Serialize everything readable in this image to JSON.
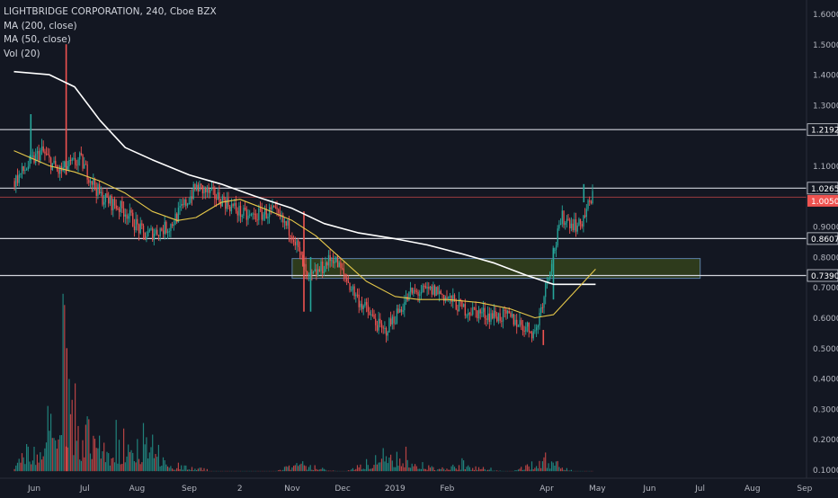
{
  "legend": {
    "title": "LIGHTBRIDGE CORPORATION, 240, Cboe BZX",
    "ma200": "MA (200, close)",
    "ma50": "MA (50, close)",
    "vol": "Vol (20)"
  },
  "colors": {
    "background": "#131722",
    "up": "#26a69a",
    "down": "#ef5350",
    "ma200": "#ffffff",
    "ma50": "#e6c84a",
    "hline": "#d1d4dc",
    "zone_fill": "#2e3b1c",
    "zone_border": "#5b7fa8",
    "last_price_bg": "#ef5350",
    "axis_text": "#b2b5be"
  },
  "chart_data": {
    "type": "candlestick",
    "title": "LIGHTBRIDGE CORPORATION, 240, Cboe BZX",
    "x_tick_labels": [
      "Jun",
      "Jul",
      "Aug",
      "Sep",
      "2",
      "Nov",
      "Dec",
      "2019",
      "Feb",
      "Apr",
      "May",
      "Jun",
      "Jul",
      "Aug",
      "Sep"
    ],
    "y_tick_labels": [
      "1.6000",
      "1.5000",
      "1.4000",
      "1.3000",
      "1.1000",
      "0.9000",
      "0.8000",
      "0.7000",
      "0.6000",
      "0.5000",
      "0.4000",
      "0.3000",
      "0.2000",
      "0.1000"
    ],
    "y_ticks": [
      1.6,
      1.5,
      1.4,
      1.3,
      1.1,
      0.9,
      0.8,
      0.7,
      0.6,
      0.5,
      0.4,
      0.3,
      0.2,
      0.1
    ],
    "ylim": [
      0.09,
      1.63
    ],
    "horizontal_levels": [
      {
        "value": 1.2192,
        "label": "1.2192"
      },
      {
        "value": 1.0265,
        "label": "1.0265"
      },
      {
        "value": 0.8607,
        "label": "0.8607"
      },
      {
        "value": 0.739,
        "label": "0.7390"
      }
    ],
    "last_price": {
      "value": 1.005,
      "label": "1.0050"
    },
    "zone": {
      "low": 0.73,
      "high": 0.795,
      "start": "2018-11",
      "end": "2019-07"
    },
    "price_path": [
      [
        "2018-05-20",
        1.05
      ],
      [
        "2018-06-05",
        1.15
      ],
      [
        "2018-06-15",
        1.08
      ],
      [
        "2018-06-28",
        1.12
      ],
      [
        "2018-07-10",
        1.0
      ],
      [
        "2018-07-25",
        0.95
      ],
      [
        "2018-08-05",
        0.87
      ],
      [
        "2018-08-20",
        0.9
      ],
      [
        "2018-09-05",
        1.03
      ],
      [
        "2018-09-20",
        0.99
      ],
      [
        "2018-10-05",
        0.93
      ],
      [
        "2018-10-20",
        0.95
      ],
      [
        "2018-11-01",
        0.88
      ],
      [
        "2018-11-10",
        0.72
      ],
      [
        "2018-11-25",
        0.8
      ],
      [
        "2018-12-10",
        0.66
      ],
      [
        "2018-12-25",
        0.55
      ],
      [
        "2019-01-10",
        0.68
      ],
      [
        "2019-01-25",
        0.69
      ],
      [
        "2019-02-10",
        0.63
      ],
      [
        "2019-02-25",
        0.61
      ],
      [
        "2019-03-10",
        0.6
      ],
      [
        "2019-03-25",
        0.55
      ],
      [
        "2019-04-03",
        0.78
      ],
      [
        "2019-04-10",
        0.93
      ],
      [
        "2019-04-20",
        0.9
      ],
      [
        "2019-04-28",
        1.0
      ]
    ],
    "ma200_path": [
      [
        "2018-05-20",
        1.41
      ],
      [
        "2018-06-10",
        1.4
      ],
      [
        "2018-06-25",
        1.36
      ],
      [
        "2018-07-10",
        1.25
      ],
      [
        "2018-07-25",
        1.16
      ],
      [
        "2018-08-10",
        1.12
      ],
      [
        "2018-09-01",
        1.07
      ],
      [
        "2018-09-20",
        1.04
      ],
      [
        "2018-10-10",
        1.0
      ],
      [
        "2018-11-01",
        0.96
      ],
      [
        "2018-11-20",
        0.91
      ],
      [
        "2018-12-10",
        0.88
      ],
      [
        "2019-01-01",
        0.86
      ],
      [
        "2019-01-20",
        0.84
      ],
      [
        "2019-02-10",
        0.81
      ],
      [
        "2019-03-01",
        0.78
      ],
      [
        "2019-03-20",
        0.74
      ],
      [
        "2019-04-05",
        0.71
      ],
      [
        "2019-04-30",
        0.71
      ]
    ],
    "ma50_path": [
      [
        "2018-05-20",
        1.15
      ],
      [
        "2018-06-10",
        1.1
      ],
      [
        "2018-06-25",
        1.08
      ],
      [
        "2018-07-10",
        1.05
      ],
      [
        "2018-07-25",
        1.01
      ],
      [
        "2018-08-10",
        0.95
      ],
      [
        "2018-08-25",
        0.92
      ],
      [
        "2018-09-05",
        0.93
      ],
      [
        "2018-09-20",
        0.98
      ],
      [
        "2018-10-01",
        0.99
      ],
      [
        "2018-10-15",
        0.96
      ],
      [
        "2018-11-01",
        0.92
      ],
      [
        "2018-11-15",
        0.87
      ],
      [
        "2018-12-01",
        0.79
      ],
      [
        "2018-12-15",
        0.72
      ],
      [
        "2019-01-01",
        0.67
      ],
      [
        "2019-01-15",
        0.66
      ],
      [
        "2019-02-01",
        0.66
      ],
      [
        "2019-02-20",
        0.65
      ],
      [
        "2019-03-10",
        0.63
      ],
      [
        "2019-03-25",
        0.6
      ],
      [
        "2019-04-05",
        0.61
      ],
      [
        "2019-04-15",
        0.67
      ],
      [
        "2019-04-30",
        0.76
      ]
    ],
    "volume_path": [
      [
        "2018-05-20",
        0.13
      ],
      [
        "2018-06-05",
        0.2
      ],
      [
        "2018-06-20",
        0.5
      ],
      [
        "2018-06-28",
        0.22
      ],
      [
        "2018-07-15",
        0.18
      ],
      [
        "2018-07-30",
        0.23
      ],
      [
        "2018-08-20",
        0.12
      ],
      [
        "2018-09-10",
        0.1
      ],
      [
        "2018-10-10",
        0.08
      ],
      [
        "2018-11-05",
        0.12
      ],
      [
        "2018-12-01",
        0.09
      ],
      [
        "2018-12-20",
        0.14
      ],
      [
        "2019-01-05",
        0.16
      ],
      [
        "2019-01-25",
        0.1
      ],
      [
        "2019-02-10",
        0.12
      ],
      [
        "2019-03-10",
        0.09
      ],
      [
        "2019-03-31",
        0.14
      ],
      [
        "2019-04-15",
        0.1
      ],
      [
        "2019-04-28",
        0.05
      ]
    ],
    "grid": false
  }
}
